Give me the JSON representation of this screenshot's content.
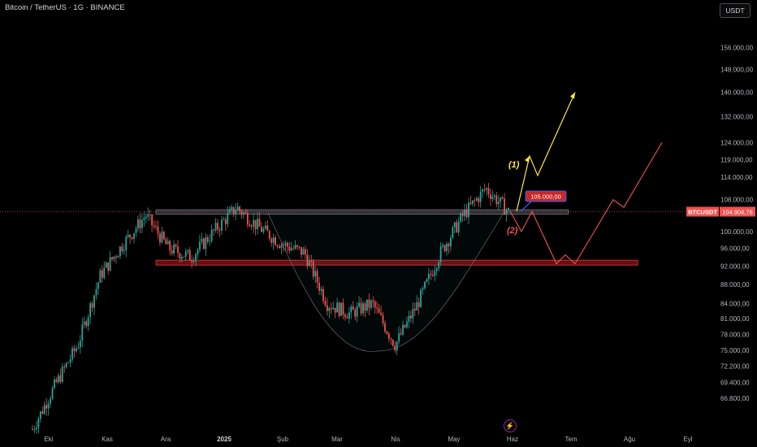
{
  "header": {
    "title": "Bitcoin / TetherUS · 1G · BINANCE",
    "currency_button": "USDT"
  },
  "price_axis": {
    "labels": [
      "156.000,00",
      "148.000,00",
      "140.000,00",
      "132.000,00",
      "124.000,00",
      "119.000,00",
      "114.000,00",
      "108.000,00",
      "100.000,00",
      "96.000,00",
      "92.000,00",
      "88.000,00",
      "84.000,00",
      "81.000,00",
      "78.000,00",
      "75.000,00",
      "72.200,00",
      "69.400,00",
      "66.800,00"
    ],
    "values": [
      156000,
      148000,
      140000,
      132000,
      124000,
      119000,
      114000,
      108000,
      100000,
      96000,
      92000,
      88000,
      84000,
      81000,
      78000,
      75000,
      72200,
      69400,
      66800
    ],
    "scale": "log"
  },
  "time_axis": {
    "labels": [
      "Eki",
      "Kas",
      "Ara",
      "2025",
      "Şub",
      "Mar",
      "Nis",
      "May",
      "Haz",
      "Tem",
      "Ağu",
      "Eyl"
    ]
  },
  "current_price": {
    "symbol": "BTCUSDT",
    "value": "104.904,76",
    "number": 104904.76
  },
  "annotations": {
    "resistance_label": "105.000,00",
    "scenario_1": "(1)",
    "scenario_2": "(2)"
  },
  "colors": {
    "up": "#26a69a",
    "down": "#ef5350",
    "scenario_1": "#ffeb3b",
    "scenario_2": "#ef5350",
    "zone": "#b71c1c",
    "accent": "#2962ff"
  },
  "chart_data": {
    "type": "candlestick",
    "title": "Bitcoin / TetherUS · 1G · BINANCE",
    "x_ticks": [
      "Eki",
      "Kas",
      "Ara",
      "2025",
      "Şub",
      "Mar",
      "Nis",
      "May",
      "Haz",
      "Tem",
      "Ağu",
      "Eyl"
    ],
    "y_scale": "log",
    "ylim": [
      65000,
      162000
    ],
    "close_path": [
      {
        "x": "Eki",
        "y": 62000
      },
      {
        "x": "Kas",
        "y": 69000
      },
      {
        "x": "Kas",
        "y": 76000
      },
      {
        "x": "Kas",
        "y": 90000
      },
      {
        "x": "Ara",
        "y": 97000
      },
      {
        "x": "Ara",
        "y": 104000
      },
      {
        "x": "Ara",
        "y": 96000
      },
      {
        "x": "2025",
        "y": 94000
      },
      {
        "x": "2025",
        "y": 100000
      },
      {
        "x": "2025",
        "y": 106000
      },
      {
        "x": "Şub",
        "y": 101000
      },
      {
        "x": "Şub",
        "y": 97000
      },
      {
        "x": "Mar",
        "y": 95000
      },
      {
        "x": "Mar",
        "y": 84000
      },
      {
        "x": "Mar",
        "y": 82000
      },
      {
        "x": "Nis",
        "y": 84000
      },
      {
        "x": "Nis",
        "y": 76000
      },
      {
        "x": "Nis",
        "y": 84000
      },
      {
        "x": "May",
        "y": 95000
      },
      {
        "x": "May",
        "y": 104000
      },
      {
        "x": "May",
        "y": 111000
      },
      {
        "x": "Haz",
        "y": 104905
      }
    ],
    "levels": [
      {
        "name": "resistance",
        "from": 104300,
        "to": 105400
      },
      {
        "name": "support",
        "from": 92200,
        "to": 93300
      }
    ],
    "projections": [
      {
        "name": "(1)",
        "color": "#ffeb3b",
        "points": [
          [
            "Haz",
            105000
          ],
          [
            "Haz",
            120000
          ],
          [
            "Haz",
            114500
          ],
          [
            "Tem",
            140000
          ]
        ]
      },
      {
        "name": "(2)",
        "color": "#ef5350",
        "points": [
          [
            "Haz",
            105000
          ],
          [
            "Haz",
            100000
          ],
          [
            "Haz",
            105000
          ],
          [
            "Tem",
            92500
          ],
          [
            "Tem",
            94500
          ],
          [
            "Tem",
            92500
          ],
          [
            "Ağu",
            108000
          ],
          [
            "Ağu",
            106000
          ],
          [
            "Eyl",
            124000
          ]
        ]
      }
    ],
    "pattern": "cup"
  }
}
